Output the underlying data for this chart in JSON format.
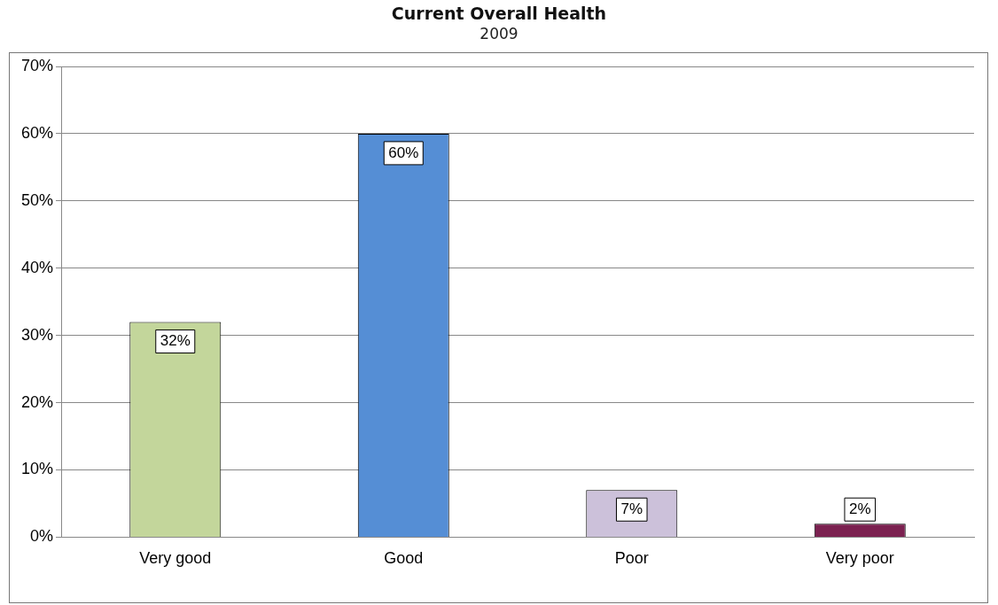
{
  "chart_data": {
    "type": "bar",
    "title": "Current Overall Health",
    "subtitle": "2009",
    "categories": [
      "Very good",
      "Good",
      "Poor",
      "Very poor"
    ],
    "values": [
      32,
      60,
      7,
      2
    ],
    "colors": [
      "#c3d69b",
      "#558ed5",
      "#ccc1da",
      "#7b2150"
    ],
    "value_labels": [
      "32%",
      "60%",
      "7%",
      "2%"
    ],
    "ylim": [
      0,
      70
    ],
    "yticks": [
      {
        "value": 0,
        "label": "0%"
      },
      {
        "value": 10,
        "label": "10%"
      },
      {
        "value": 20,
        "label": "20%"
      },
      {
        "value": 30,
        "label": "30%"
      },
      {
        "value": 40,
        "label": "40%"
      },
      {
        "value": 50,
        "label": "50%"
      },
      {
        "value": 60,
        "label": "60%"
      },
      {
        "value": 70,
        "label": "70%"
      }
    ],
    "grid": "y",
    "legend": false
  }
}
